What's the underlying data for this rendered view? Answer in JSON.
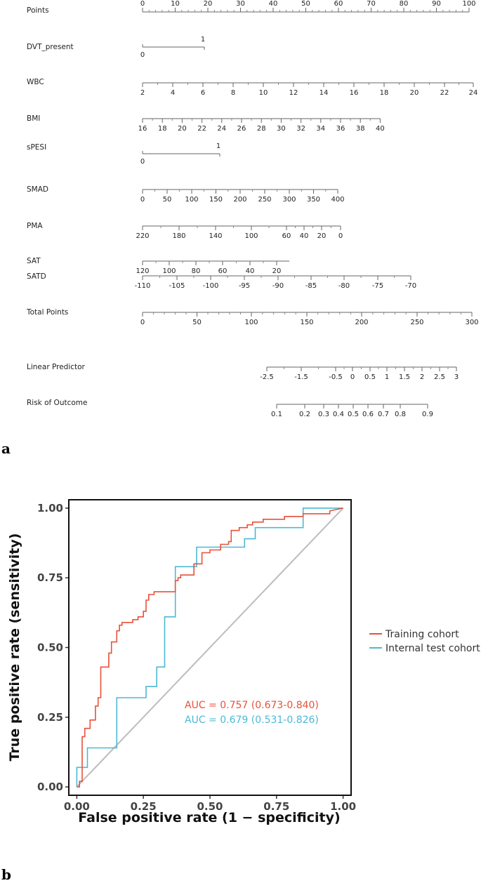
{
  "panel_a_label": "a",
  "panel_b_label": "b",
  "chart_data": [
    {
      "type": "nomogram",
      "rows": [
        {
          "label": "Points",
          "ticks": [
            "0",
            "10",
            "20",
            "30",
            "40",
            "50",
            "60",
            "70",
            "80",
            "90",
            "100"
          ],
          "range": [
            0,
            100
          ]
        },
        {
          "label": "DVT_present",
          "ticks": [
            "0",
            "1"
          ],
          "points": [
            0,
            19
          ]
        },
        {
          "label": "WBC",
          "ticks": [
            "2",
            "4",
            "6",
            "8",
            "10",
            "12",
            "14",
            "16",
            "18",
            "20",
            "22",
            "24"
          ],
          "range": [
            2,
            24
          ]
        },
        {
          "label": "BMI",
          "ticks": [
            "16",
            "18",
            "20",
            "22",
            "24",
            "26",
            "28",
            "30",
            "32",
            "34",
            "36",
            "38",
            "40"
          ],
          "range": [
            16,
            40
          ]
        },
        {
          "label": "sPESI",
          "ticks": [
            "0",
            "1"
          ],
          "points": [
            0,
            23
          ]
        },
        {
          "label": "SMAD",
          "ticks": [
            "0",
            "50",
            "100",
            "150",
            "200",
            "250",
            "300",
            "350",
            "400"
          ],
          "range": [
            0,
            400
          ]
        },
        {
          "label": "PMA",
          "ticks": [
            "220",
            "180",
            "140",
            "100",
            "60",
            "40",
            "20",
            "0"
          ],
          "range": [
            220,
            0
          ]
        },
        {
          "label": "SAT",
          "ticks": [
            "120",
            "100",
            "80",
            "60",
            "40",
            "20"
          ],
          "range": [
            120,
            10
          ]
        },
        {
          "label": "SATD",
          "ticks": [
            "-110",
            "-105",
            "-100",
            "-95",
            "-90",
            "-85",
            "-80",
            "-75",
            "-70"
          ],
          "range": [
            -110,
            -70
          ]
        },
        {
          "label": "Total Points",
          "ticks": [
            "0",
            "50",
            "100",
            "150",
            "200",
            "250",
            "300"
          ],
          "range": [
            0,
            300
          ]
        },
        {
          "label": "Linear Predictor",
          "ticks": [
            "-2.5",
            "-1.5",
            "-0.5",
            "0",
            "0.5",
            "1",
            "1.5",
            "2",
            "2.5",
            "3"
          ],
          "range": [
            -2.5,
            3
          ]
        },
        {
          "label": "Risk of Outcome",
          "ticks": [
            "0.1",
            "0.2",
            "0.3",
            "0.4",
            "0.5",
            "0.6",
            "0.7",
            "0.8",
            "0.9"
          ],
          "range": [
            0.1,
            0.9
          ]
        }
      ]
    },
    {
      "type": "line",
      "xlabel": "False positive rate (1 − specificity)",
      "ylabel": "True positive rate (sensitivity)",
      "xlim": [
        0,
        1
      ],
      "ylim": [
        0,
        1
      ],
      "xticks": [
        "0.00",
        "0.25",
        "0.50",
        "0.75",
        "1.00"
      ],
      "yticks": [
        "0.00",
        "0.25",
        "0.50",
        "0.75",
        "1.00"
      ],
      "legend_position": "right",
      "series": [
        {
          "name": "Training cohort",
          "color": "#e8513a",
          "auc_text": "AUC = 0.757 (0.673-0.840)",
          "x": [
            0,
            0.01,
            0.01,
            0.02,
            0.02,
            0.03,
            0.03,
            0.05,
            0.05,
            0.07,
            0.07,
            0.08,
            0.08,
            0.09,
            0.09,
            0.1,
            0.1,
            0.12,
            0.12,
            0.13,
            0.13,
            0.15,
            0.15,
            0.16,
            0.16,
            0.17,
            0.17,
            0.21,
            0.21,
            0.23,
            0.23,
            0.25,
            0.25,
            0.26,
            0.26,
            0.27,
            0.27,
            0.29,
            0.29,
            0.37,
            0.37,
            0.38,
            0.38,
            0.39,
            0.39,
            0.44,
            0.44,
            0.47,
            0.47,
            0.5,
            0.5,
            0.54,
            0.54,
            0.56,
            0.56,
            0.57,
            0.57,
            0.58,
            0.58,
            0.61,
            0.61,
            0.64,
            0.64,
            0.66,
            0.66,
            0.7,
            0.7,
            0.78,
            0.78,
            0.85,
            0.85,
            0.95,
            0.95,
            1
          ],
          "y": [
            0,
            0,
            0.02,
            0.02,
            0.18,
            0.18,
            0.21,
            0.21,
            0.24,
            0.24,
            0.29,
            0.29,
            0.32,
            0.32,
            0.43,
            0.43,
            0.43,
            0.43,
            0.48,
            0.48,
            0.52,
            0.52,
            0.56,
            0.56,
            0.58,
            0.58,
            0.59,
            0.59,
            0.6,
            0.6,
            0.61,
            0.61,
            0.63,
            0.63,
            0.67,
            0.67,
            0.69,
            0.69,
            0.7,
            0.7,
            0.74,
            0.74,
            0.75,
            0.75,
            0.76,
            0.76,
            0.8,
            0.8,
            0.84,
            0.84,
            0.85,
            0.85,
            0.87,
            0.87,
            0.87,
            0.87,
            0.88,
            0.88,
            0.92,
            0.92,
            0.93,
            0.93,
            0.94,
            0.94,
            0.95,
            0.95,
            0.96,
            0.96,
            0.97,
            0.97,
            0.98,
            0.98,
            0.99,
            1
          ]
        },
        {
          "name": "Internal test cohort",
          "color": "#4db8d4",
          "auc_text": "AUC = 0.679 (0.531-0.826)",
          "x": [
            0,
            0,
            0.02,
            0.02,
            0.04,
            0.04,
            0.15,
            0.15,
            0.26,
            0.26,
            0.3,
            0.3,
            0.33,
            0.33,
            0.37,
            0.37,
            0.45,
            0.45,
            0.59,
            0.59,
            0.63,
            0.63,
            0.67,
            0.67,
            0.85,
            0.85,
            0.96,
            0.96,
            1
          ],
          "y": [
            0,
            0.07,
            0.07,
            0.07,
            0.07,
            0.14,
            0.14,
            0.32,
            0.32,
            0.36,
            0.36,
            0.43,
            0.43,
            0.61,
            0.61,
            0.79,
            0.79,
            0.86,
            0.86,
            0.86,
            0.86,
            0.89,
            0.89,
            0.93,
            0.93,
            1,
            1,
            1,
            1
          ]
        }
      ]
    }
  ]
}
